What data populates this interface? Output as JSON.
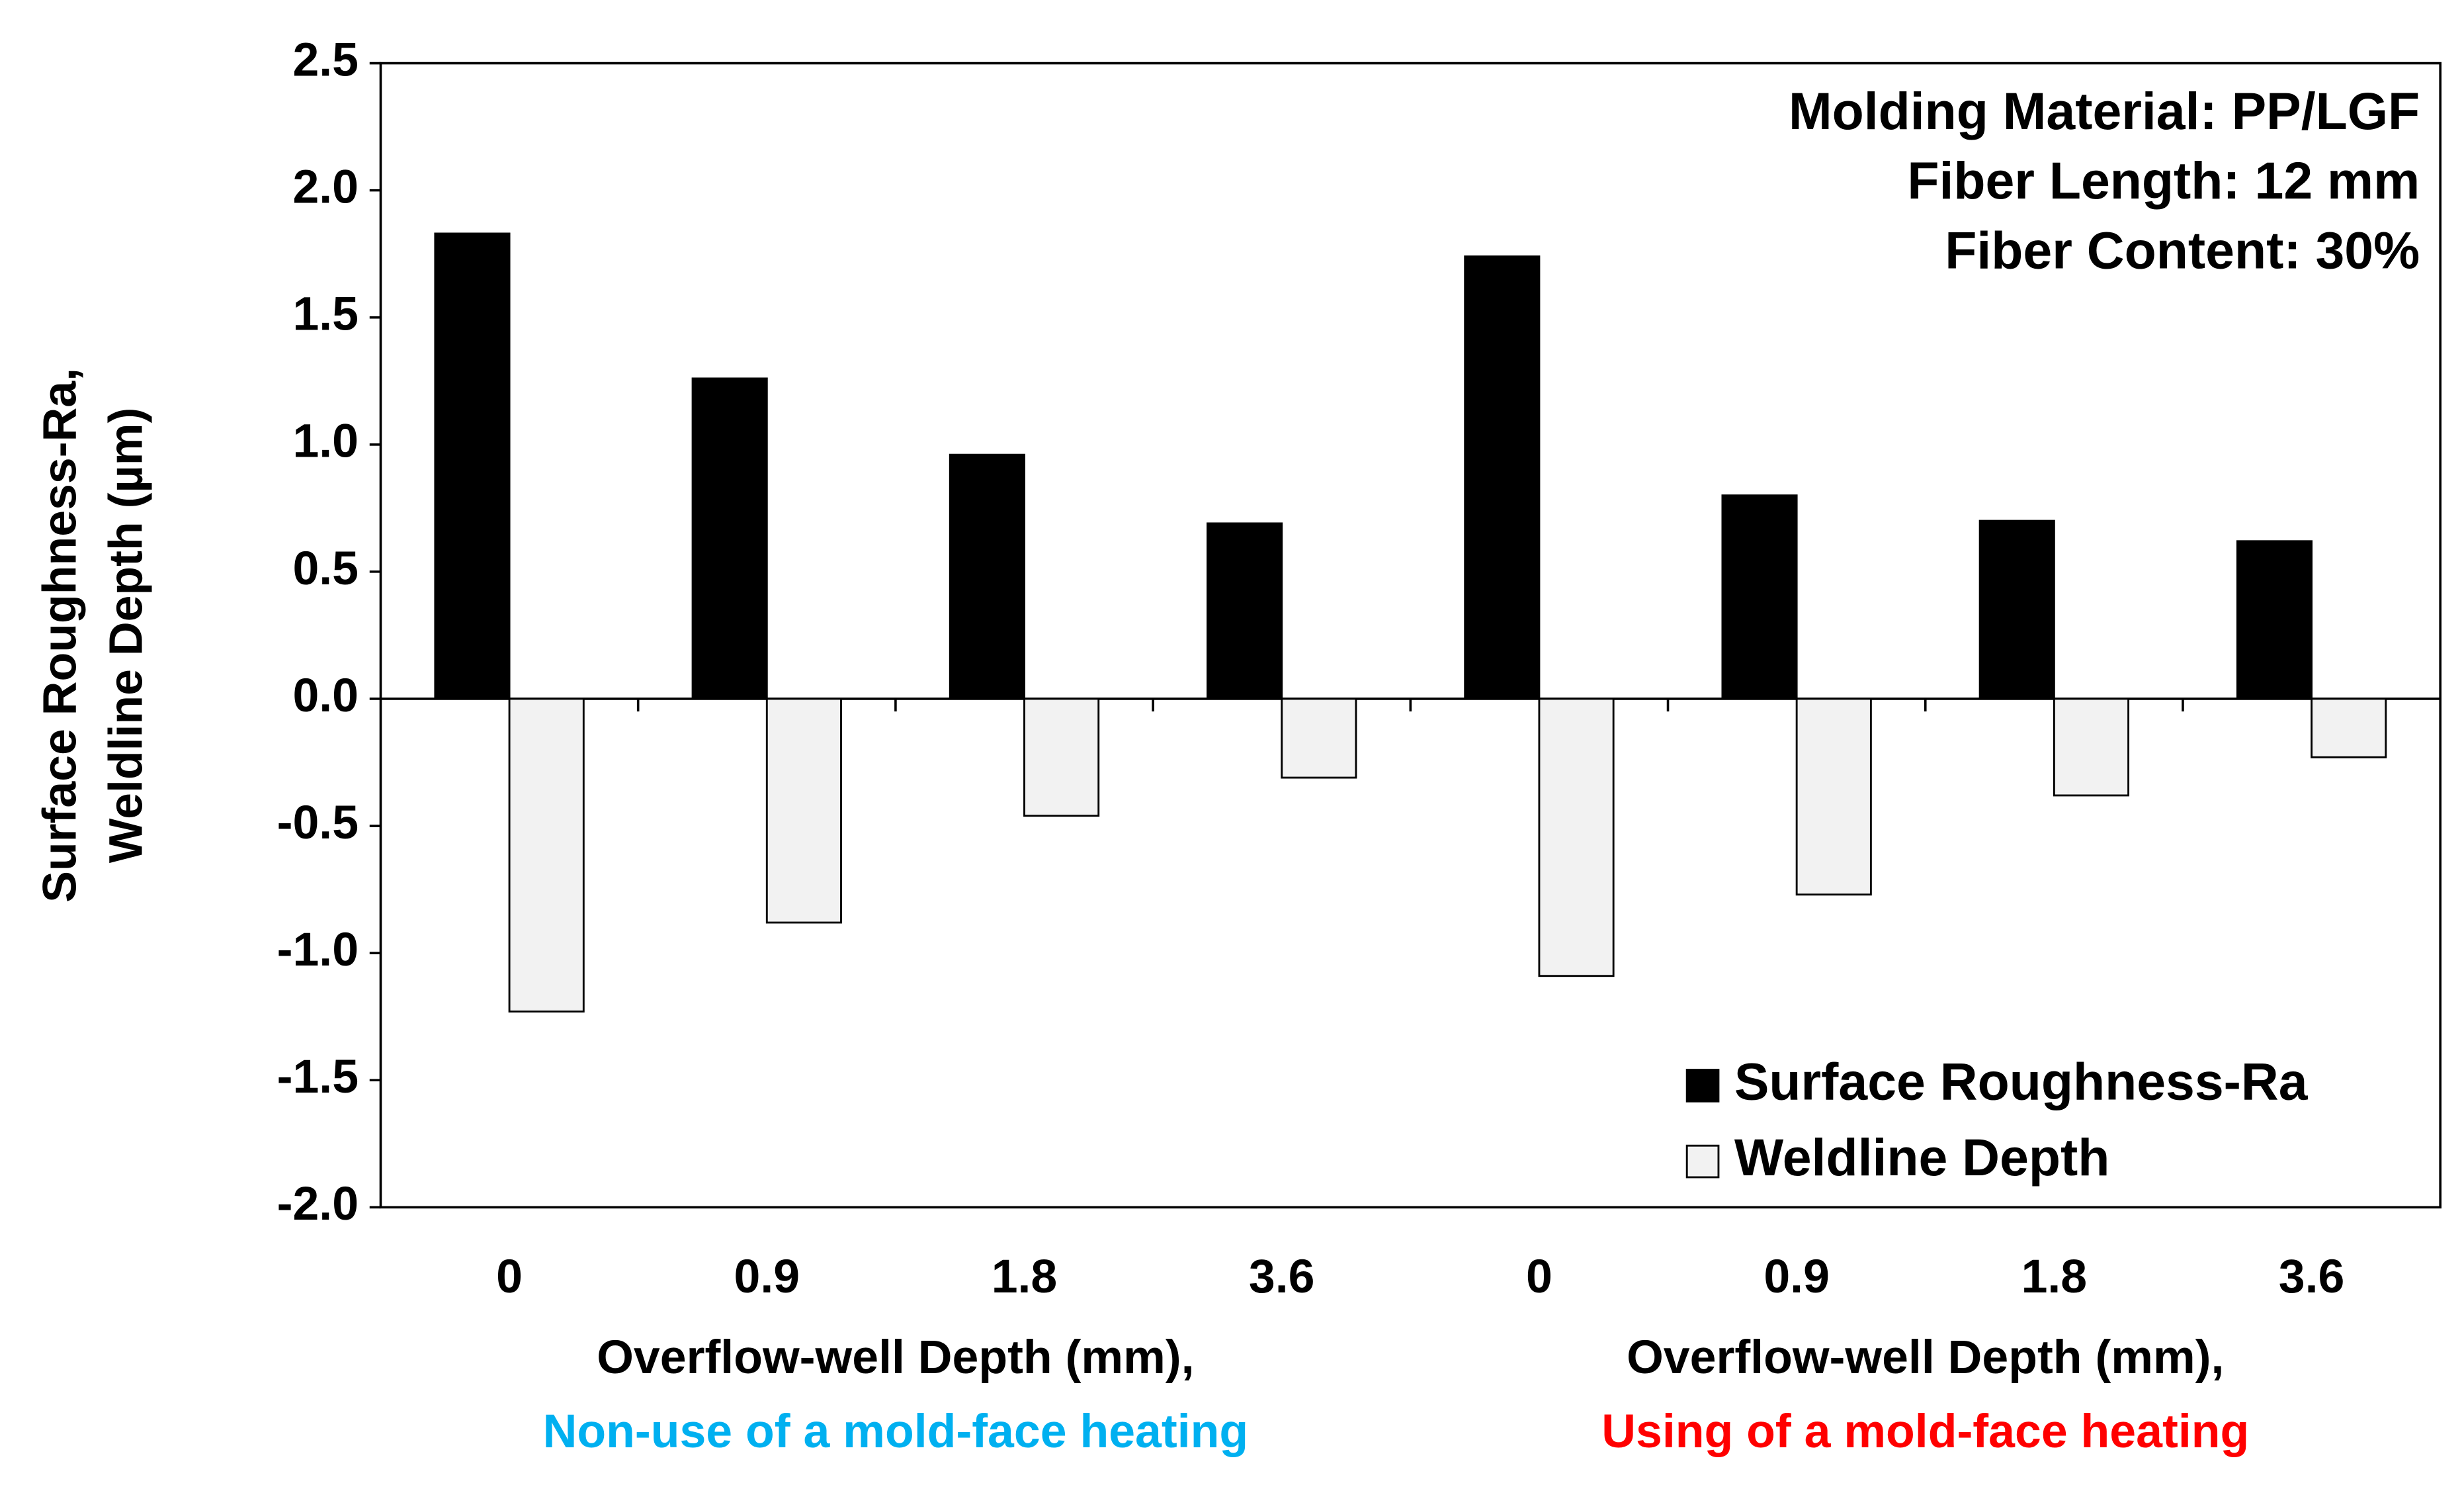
{
  "chart_data": {
    "type": "bar",
    "y_title": [
      "Surface Roughness-Ra,",
      "Weldline Depth (µm)"
    ],
    "categories": [
      "0",
      "0.9",
      "1.8",
      "3.6",
      "0",
      "0.9",
      "1.8",
      "3.6"
    ],
    "group_labels": [
      {
        "lines": [
          "Overflow-well Depth (mm),",
          "Non-use of a mold-face heating"
        ],
        "color": "#00b0f0"
      },
      {
        "lines": [
          "Overflow-well Depth (mm),",
          "Using of a mold-face heating"
        ],
        "color": "#ff0000"
      }
    ],
    "series": [
      {
        "name": "Surface Roughness-Ra",
        "color": "#000000",
        "values": [
          1.83,
          1.26,
          0.96,
          0.69,
          1.74,
          0.8,
          0.7,
          0.62
        ]
      },
      {
        "name": "Weldline Depth",
        "color": "#f2f2f2",
        "values": [
          -1.23,
          -0.88,
          -0.46,
          -0.31,
          -1.09,
          -0.77,
          -0.38,
          -0.23
        ]
      }
    ],
    "ylim": [
      -2.0,
      2.5
    ],
    "yticks": [
      {
        "value": -2,
        "label": "-2.0"
      },
      -1.5,
      {
        "value": -1,
        "label": "-1.0"
      },
      -0.5,
      {
        "value": 0,
        "label": "0.0"
      },
      0.5,
      {
        "value": 1,
        "label": "1.0"
      },
      1.5,
      {
        "value": 2,
        "label": "2.0"
      },
      2.5
    ],
    "annotations": [
      "Molding Material: PP/LGF",
      "Fiber Length: 12 mm",
      "Fiber Content: 30%"
    ],
    "legend_position": "lower right",
    "grid": false
  }
}
